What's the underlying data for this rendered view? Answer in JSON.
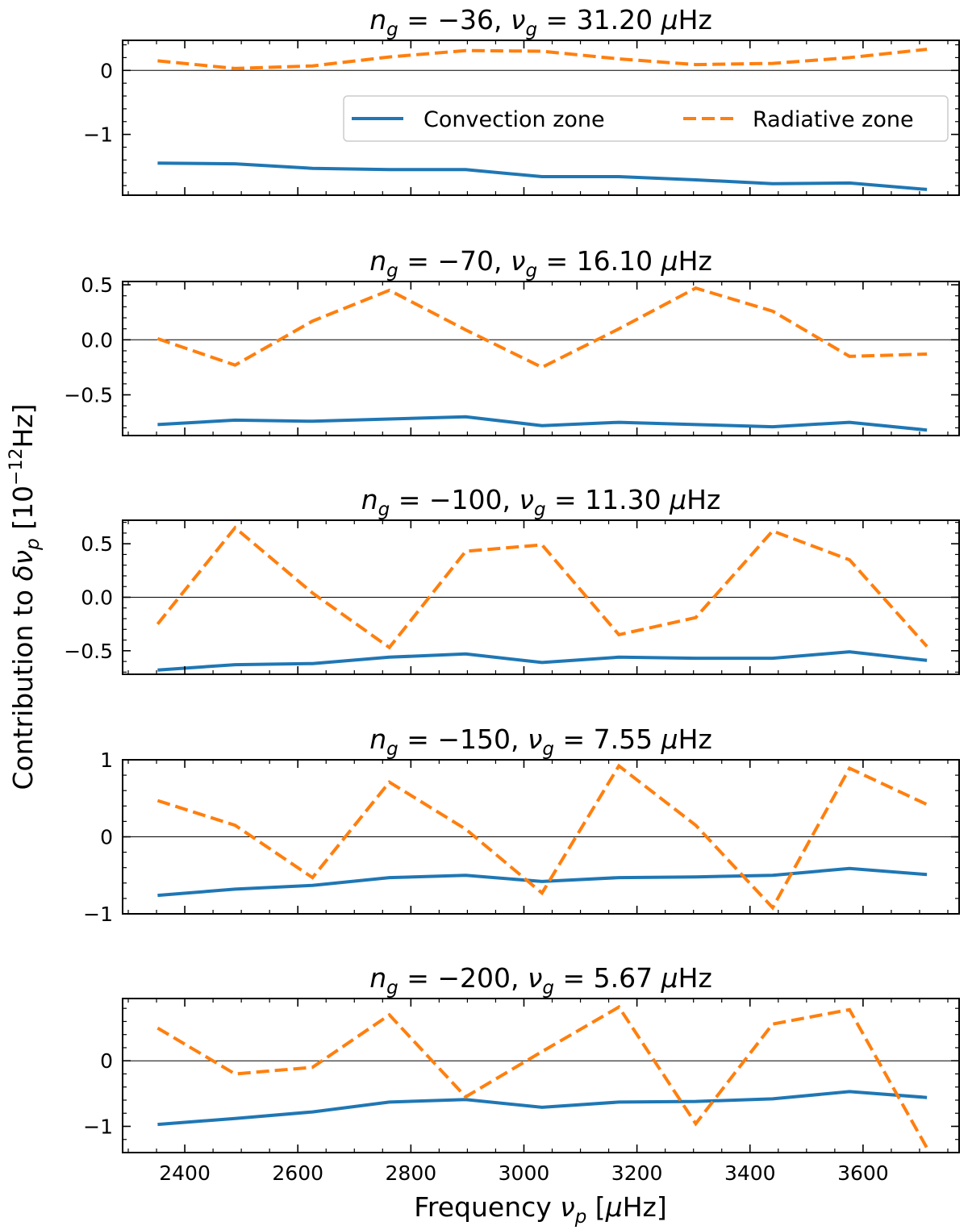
{
  "figure": {
    "xlabel": "Frequency ν_p [μHz]",
    "ylabel": "Contribution to δν_p [10^-12 Hz]"
  },
  "legend": {
    "location": "upper-right of first panel",
    "entries": [
      {
        "label": "Convection zone",
        "color": "#1f77b4",
        "style": "solid"
      },
      {
        "label": "Radiative zone",
        "color": "#ff7f0e",
        "style": "dashed"
      }
    ]
  },
  "colors": {
    "convection": "#1f77b4",
    "radiative": "#ff7f0e"
  },
  "chart_data": [
    {
      "type": "line",
      "title": "n_g = −36, ν_g = 31.20 μHz",
      "title_parts": {
        "n": "−36",
        "nu": "31.20"
      },
      "x": [
        2352,
        2489,
        2626,
        2762,
        2897,
        3032,
        3168,
        3304,
        3440,
        3576,
        3713
      ],
      "xlim": [
        2290,
        3770
      ],
      "ylim": [
        -1.95,
        0.47
      ],
      "yticks": [
        0,
        -1
      ],
      "yticklabels": [
        "0",
        "−1"
      ],
      "xticks": [
        2400,
        2600,
        2800,
        3000,
        3200,
        3400,
        3600
      ],
      "series": [
        {
          "name": "Convection zone",
          "values": [
            -1.45,
            -1.46,
            -1.53,
            -1.55,
            -1.55,
            -1.66,
            -1.66,
            -1.71,
            -1.77,
            -1.76,
            -1.86
          ]
        },
        {
          "name": "Radiative zone",
          "values": [
            0.15,
            0.03,
            0.07,
            0.21,
            0.31,
            0.3,
            0.18,
            0.09,
            0.11,
            0.2,
            0.33
          ]
        }
      ]
    },
    {
      "type": "line",
      "title": "n_g = −70, ν_g = 16.10 μHz",
      "title_parts": {
        "n": "−70",
        "nu": "16.10"
      },
      "x": [
        2352,
        2489,
        2626,
        2762,
        2897,
        3032,
        3168,
        3304,
        3440,
        3576,
        3713
      ],
      "xlim": [
        2290,
        3770
      ],
      "ylim": [
        -0.87,
        0.53
      ],
      "yticks": [
        0.5,
        0.0,
        -0.5
      ],
      "yticklabels": [
        "0.5",
        "0.0",
        "−0.5"
      ],
      "xticks": [
        2400,
        2600,
        2800,
        3000,
        3200,
        3400,
        3600
      ],
      "series": [
        {
          "name": "Convection zone",
          "values": [
            -0.77,
            -0.73,
            -0.74,
            -0.72,
            -0.7,
            -0.78,
            -0.75,
            -0.77,
            -0.79,
            -0.75,
            -0.82
          ]
        },
        {
          "name": "Radiative zone",
          "values": [
            0.01,
            -0.23,
            0.17,
            0.45,
            0.09,
            -0.25,
            0.1,
            0.47,
            0.26,
            -0.15,
            -0.13
          ]
        }
      ]
    },
    {
      "type": "line",
      "title": "n_g = −100, ν_g = 11.30 μHz",
      "title_parts": {
        "n": "−100",
        "nu": "11.30"
      },
      "x": [
        2352,
        2489,
        2626,
        2762,
        2897,
        3032,
        3168,
        3304,
        3440,
        3576,
        3713
      ],
      "xlim": [
        2290,
        3770
      ],
      "ylim": [
        -0.72,
        0.72
      ],
      "yticks": [
        0.5,
        0.0,
        -0.5
      ],
      "yticklabels": [
        "0.5",
        "0.0",
        "−0.5"
      ],
      "xticks": [
        2400,
        2600,
        2800,
        3000,
        3200,
        3400,
        3600
      ],
      "series": [
        {
          "name": "Convection zone",
          "values": [
            -0.68,
            -0.63,
            -0.62,
            -0.56,
            -0.53,
            -0.61,
            -0.56,
            -0.57,
            -0.57,
            -0.51,
            -0.59
          ]
        },
        {
          "name": "Radiative zone",
          "values": [
            -0.25,
            0.65,
            0.04,
            -0.47,
            0.43,
            0.49,
            -0.35,
            -0.19,
            0.62,
            0.35,
            -0.46
          ]
        }
      ]
    },
    {
      "type": "line",
      "title": "n_g = −150, ν_g = 7.55 μHz",
      "title_parts": {
        "n": "−150",
        "nu": "7.55"
      },
      "x": [
        2352,
        2489,
        2626,
        2762,
        2897,
        3032,
        3168,
        3304,
        3440,
        3576,
        3713
      ],
      "xlim": [
        2290,
        3770
      ],
      "ylim": [
        -1.0,
        1.0
      ],
      "yticks": [
        1,
        0,
        -1
      ],
      "yticklabels": [
        "1",
        "0",
        "−1"
      ],
      "xticks": [
        2400,
        2600,
        2800,
        3000,
        3200,
        3400,
        3600
      ],
      "series": [
        {
          "name": "Convection zone",
          "values": [
            -0.76,
            -0.68,
            -0.63,
            -0.53,
            -0.5,
            -0.58,
            -0.53,
            -0.52,
            -0.5,
            -0.41,
            -0.49
          ]
        },
        {
          "name": "Radiative zone",
          "values": [
            0.47,
            0.15,
            -0.53,
            0.71,
            0.1,
            -0.73,
            0.92,
            0.15,
            -0.92,
            0.89,
            0.42
          ]
        }
      ]
    },
    {
      "type": "line",
      "title": "n_g = −200, ν_g = 5.67 μHz",
      "title_parts": {
        "n": "−200",
        "nu": "5.67"
      },
      "x": [
        2352,
        2489,
        2626,
        2762,
        2897,
        3032,
        3168,
        3304,
        3440,
        3576,
        3713
      ],
      "xlim": [
        2290,
        3770
      ],
      "ylim": [
        -1.4,
        0.95
      ],
      "yticks": [
        0,
        -1
      ],
      "yticklabels": [
        "0",
        "−1"
      ],
      "xticks": [
        2400,
        2600,
        2800,
        3000,
        3200,
        3400,
        3600
      ],
      "xticklabels": [
        "2400",
        "2600",
        "2800",
        "3000",
        "3200",
        "3400",
        "3600"
      ],
      "series": [
        {
          "name": "Convection zone",
          "values": [
            -0.97,
            -0.88,
            -0.78,
            -0.63,
            -0.59,
            -0.71,
            -0.63,
            -0.62,
            -0.58,
            -0.47,
            -0.56
          ]
        },
        {
          "name": "Radiative zone",
          "values": [
            0.5,
            -0.2,
            -0.1,
            0.7,
            -0.55,
            0.14,
            0.82,
            -0.96,
            0.56,
            0.78,
            -1.33
          ]
        }
      ]
    }
  ]
}
